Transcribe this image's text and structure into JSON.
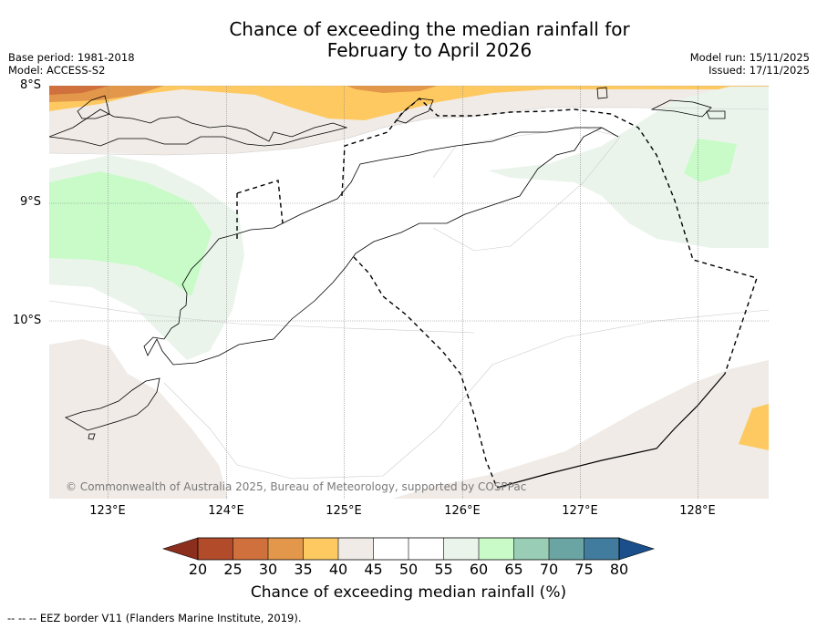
{
  "title": {
    "line1": "Chance of exceeding the median rainfall for",
    "line2": "February to April 2026"
  },
  "meta_left": {
    "base_period": "Base period: 1981-2018",
    "model": "Model: ACCESS-S2"
  },
  "meta_right": {
    "model_run": "Model run: 15/11/2025",
    "issued": "Issued: 17/11/2025"
  },
  "latitude_labels": [
    "8°S",
    "9°S",
    "10°S"
  ],
  "longitude_labels": [
    "123°E",
    "124°E",
    "125°E",
    "126°E",
    "127°E",
    "128°E"
  ],
  "copyright": "© Commonwealth of Australia 2025, Bureau of Meteorology, supported by COSPPac",
  "colorbar": {
    "title": "Chance of exceeding median rainfall (%)",
    "ticks": [
      "20",
      "25",
      "30",
      "35",
      "40",
      "45",
      "50",
      "55",
      "60",
      "65",
      "70",
      "75",
      "80"
    ],
    "colors": [
      "#b24b2a",
      "#d0703c",
      "#e3974a",
      "#fec961",
      "#f0ebe6",
      "#ffffff",
      "#ffffff",
      "#ebf4eb",
      "#c8fbc8",
      "#99cdb5",
      "#6aa5a4",
      "#417b9d"
    ],
    "under_color": "#8c2e1d",
    "over_color": "#1a4f8c"
  },
  "footnote": "--  --  -- EEZ border V11 (Flanders Marine Institute, 2019).",
  "map_colors": {
    "dry_orange": "#fec961",
    "dry_dark": "#e3974a",
    "dry_darkest": "#d0703c",
    "near_normal": "#f0ebe6",
    "wet_light": "#ebf4eb",
    "wet_green": "#c8fbc8"
  }
}
